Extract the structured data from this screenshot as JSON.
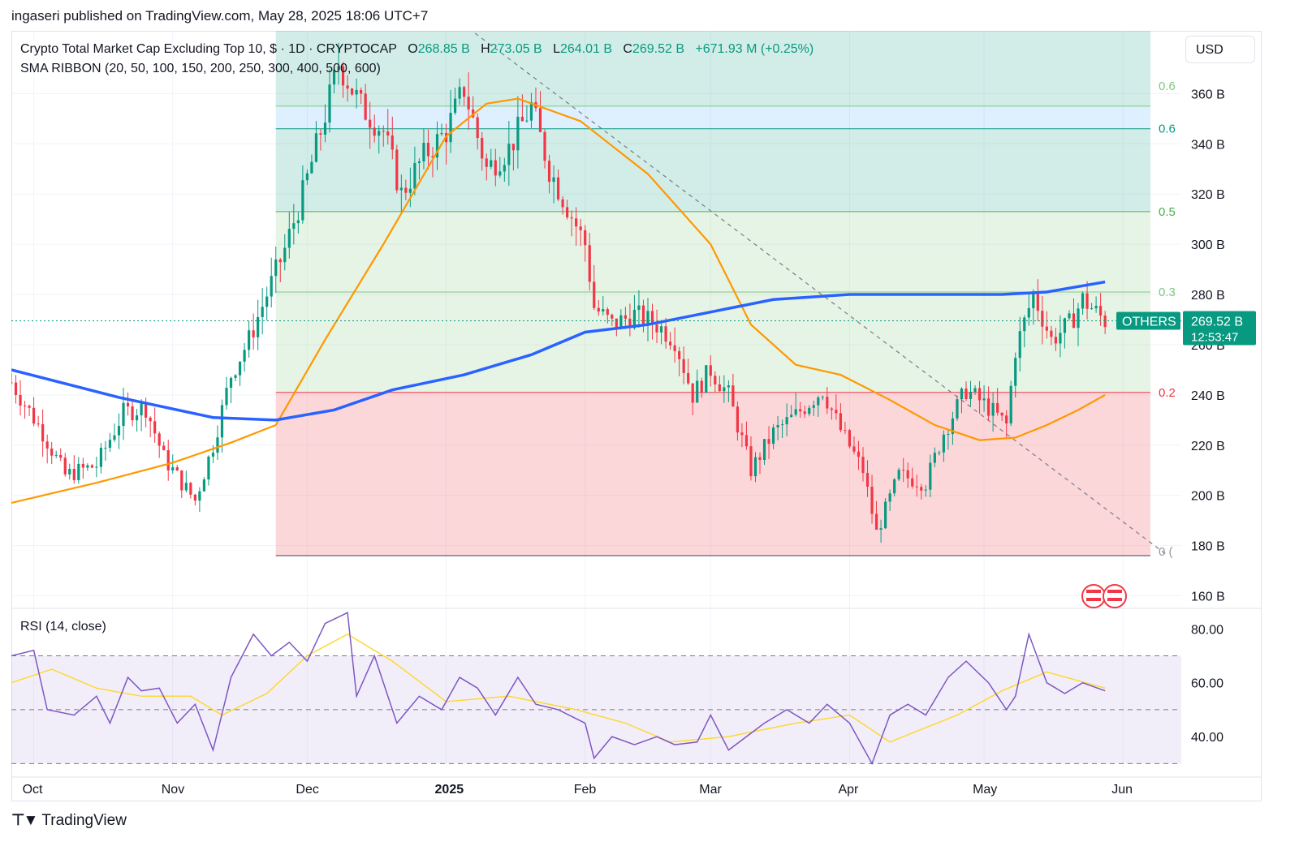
{
  "header": {
    "published": "ingaseri published on TradingView.com, May 28, 2025 18:06 UTC+7"
  },
  "legend": {
    "title": "Crypto Total Market Cap Excluding Top 10, $ · 1D · CRYPTOCAP",
    "o_label": "O",
    "o_value": "268.85 B",
    "h_label": "H",
    "h_value": "273.05 B",
    "l_label": "L",
    "l_value": "264.01 B",
    "c_label": "C",
    "c_value": "269.52 B",
    "change": "+671.93 M (+0.25%)",
    "indicator": "SMA RIBBON (20, 50, 100, 150, 200, 250, 300, 400, 500, 600)"
  },
  "currency_button": "USD",
  "rsi_title": "RSI (14, close)",
  "price_tag": {
    "symbol": "OTHERS",
    "price": "269.52 B",
    "countdown": "12:53:47"
  },
  "brand": "TradingView",
  "colors": {
    "up": "#089981",
    "down": "#f23645",
    "sma_fast": "#ff9800",
    "sma_slow": "#2962ff",
    "rsi": "#7e57c2",
    "rsi_ma": "#fdd835"
  },
  "chart_data": {
    "type": "candlestick",
    "title": "Crypto Total Market Cap Excluding Top 10, $ · 1D · CRYPTOCAP",
    "y_unit": "B USD",
    "y_range": [
      155,
      385
    ],
    "y_ticks": [
      "360 B",
      "340 B",
      "320 B",
      "300 B",
      "280 B",
      "260 B",
      "240 B",
      "220 B",
      "200 B",
      "180 B",
      "160 B"
    ],
    "x_labels": [
      "Oct",
      "Nov",
      "Dec",
      "2025",
      "Feb",
      "Mar",
      "Apr",
      "May",
      "Jun"
    ],
    "x_range": [
      "2024-09-26",
      "2025-06-14"
    ],
    "last_price": 269.52,
    "price_path_points": [
      [
        "2024-09-26",
        245
      ],
      [
        "2024-10-03",
        225
      ],
      [
        "2024-10-08",
        208
      ],
      [
        "2024-10-15",
        212
      ],
      [
        "2024-10-21",
        233
      ],
      [
        "2024-10-26",
        235
      ],
      [
        "2024-10-30",
        215
      ],
      [
        "2024-11-03",
        205
      ],
      [
        "2024-11-06",
        198
      ],
      [
        "2024-11-10",
        220
      ],
      [
        "2024-11-14",
        248
      ],
      [
        "2024-11-18",
        262
      ],
      [
        "2024-11-22",
        280
      ],
      [
        "2024-11-26",
        298
      ],
      [
        "2024-11-30",
        320
      ],
      [
        "2024-12-04",
        345
      ],
      [
        "2024-12-08",
        372
      ],
      [
        "2024-12-13",
        355
      ],
      [
        "2024-12-18",
        345
      ],
      [
        "2024-12-22",
        320
      ],
      [
        "2024-12-27",
        335
      ],
      [
        "2025-01-01",
        345
      ],
      [
        "2025-01-05",
        362
      ],
      [
        "2025-01-10",
        330
      ],
      [
        "2025-01-15",
        338
      ],
      [
        "2025-01-20",
        355
      ],
      [
        "2025-01-24",
        330
      ],
      [
        "2025-01-28",
        315
      ],
      [
        "2025-02-01",
        300
      ],
      [
        "2025-02-03",
        275
      ],
      [
        "2025-02-07",
        268
      ],
      [
        "2025-02-12",
        272
      ],
      [
        "2025-02-17",
        268
      ],
      [
        "2025-02-21",
        262
      ],
      [
        "2025-02-25",
        240
      ],
      [
        "2025-03-01",
        250
      ],
      [
        "2025-03-05",
        240
      ],
      [
        "2025-03-10",
        210
      ],
      [
        "2025-03-15",
        225
      ],
      [
        "2025-03-20",
        232
      ],
      [
        "2025-03-26",
        242
      ],
      [
        "2025-03-30",
        226
      ],
      [
        "2025-04-04",
        210
      ],
      [
        "2025-04-07",
        185
      ],
      [
        "2025-04-12",
        208
      ],
      [
        "2025-04-18",
        205
      ],
      [
        "2025-04-22",
        225
      ],
      [
        "2025-04-27",
        242
      ],
      [
        "2025-05-02",
        235
      ],
      [
        "2025-05-06",
        228
      ],
      [
        "2025-05-08",
        258
      ],
      [
        "2025-05-12",
        280
      ],
      [
        "2025-05-16",
        262
      ],
      [
        "2025-05-20",
        268
      ],
      [
        "2025-05-23",
        278
      ],
      [
        "2025-05-28",
        269.52
      ]
    ],
    "sma_fast_points": [
      [
        "2024-09-26",
        197
      ],
      [
        "2024-10-15",
        205
      ],
      [
        "2024-11-01",
        213
      ],
      [
        "2024-11-14",
        221
      ],
      [
        "2024-11-24",
        228
      ],
      [
        "2024-12-05",
        262
      ],
      [
        "2024-12-18",
        300
      ],
      [
        "2025-01-01",
        343
      ],
      [
        "2025-01-10",
        356
      ],
      [
        "2025-01-17",
        358
      ],
      [
        "2025-01-31",
        349
      ],
      [
        "2025-02-15",
        328
      ],
      [
        "2025-03-01",
        300
      ],
      [
        "2025-03-10",
        268
      ],
      [
        "2025-03-20",
        252
      ],
      [
        "2025-03-30",
        248
      ],
      [
        "2025-04-10",
        238
      ],
      [
        "2025-04-20",
        228
      ],
      [
        "2025-04-30",
        222
      ],
      [
        "2025-05-08",
        223
      ],
      [
        "2025-05-15",
        228
      ],
      [
        "2025-05-22",
        234
      ],
      [
        "2025-05-28",
        240
      ]
    ],
    "sma_slow_points": [
      [
        "2024-09-26",
        250
      ],
      [
        "2024-10-20",
        239
      ],
      [
        "2024-11-10",
        231
      ],
      [
        "2024-11-24",
        230
      ],
      [
        "2024-12-07",
        234
      ],
      [
        "2024-12-20",
        242
      ],
      [
        "2025-01-05",
        248
      ],
      [
        "2025-01-20",
        256
      ],
      [
        "2025-02-01",
        265
      ],
      [
        "2025-02-15",
        268
      ],
      [
        "2025-03-01",
        273
      ],
      [
        "2025-03-15",
        278
      ],
      [
        "2025-04-01",
        280
      ],
      [
        "2025-04-20",
        280
      ],
      [
        "2025-05-05",
        280
      ],
      [
        "2025-05-15",
        281
      ],
      [
        "2025-05-28",
        285
      ]
    ],
    "fib_levels": [
      {
        "label": "0.6",
        "value": 355
      },
      {
        "label": "0.6",
        "value": 346
      },
      {
        "label": "0.5",
        "value": 313
      },
      {
        "label": "0.3",
        "value": 281
      },
      {
        "label": "0.2",
        "value": 241
      },
      {
        "label": "0 (",
        "value": 176
      }
    ],
    "trendline": [
      [
        "2025-01-06",
        386
      ],
      [
        "2025-06-11",
        176
      ]
    ],
    "rsi": {
      "title": "RSI (14, close)",
      "y_range": [
        28,
        87
      ],
      "y_ticks": [
        "80.00",
        "60.00",
        "40.00"
      ],
      "band": [
        30,
        70
      ],
      "rsi_points": [
        [
          "2024-09-26",
          70
        ],
        [
          "2024-10-01",
          72
        ],
        [
          "2024-10-04",
          50
        ],
        [
          "2024-10-10",
          48
        ],
        [
          "2024-10-15",
          55
        ],
        [
          "2024-10-18",
          45
        ],
        [
          "2024-10-22",
          62
        ],
        [
          "2024-10-25",
          57
        ],
        [
          "2024-10-29",
          58
        ],
        [
          "2024-11-02",
          45
        ],
        [
          "2024-11-06",
          52
        ],
        [
          "2024-11-10",
          35
        ],
        [
          "2024-11-14",
          62
        ],
        [
          "2024-11-19",
          78
        ],
        [
          "2024-11-23",
          70
        ],
        [
          "2024-11-27",
          75
        ],
        [
          "2024-12-01",
          68
        ],
        [
          "2024-12-05",
          82
        ],
        [
          "2024-12-10",
          86
        ],
        [
          "2024-12-12",
          55
        ],
        [
          "2024-12-16",
          70
        ],
        [
          "2024-12-21",
          45
        ],
        [
          "2024-12-26",
          55
        ],
        [
          "2024-12-31",
          50
        ],
        [
          "2025-01-04",
          62
        ],
        [
          "2025-01-08",
          58
        ],
        [
          "2025-01-12",
          48
        ],
        [
          "2025-01-17",
          62
        ],
        [
          "2025-01-21",
          52
        ],
        [
          "2025-01-26",
          50
        ],
        [
          "2025-02-01",
          45
        ],
        [
          "2025-02-03",
          32
        ],
        [
          "2025-02-07",
          40
        ],
        [
          "2025-02-12",
          37
        ],
        [
          "2025-02-17",
          40
        ],
        [
          "2025-02-21",
          37
        ],
        [
          "2025-02-26",
          38
        ],
        [
          "2025-03-01",
          48
        ],
        [
          "2025-03-05",
          35
        ],
        [
          "2025-03-09",
          40
        ],
        [
          "2025-03-13",
          45
        ],
        [
          "2025-03-18",
          50
        ],
        [
          "2025-03-23",
          45
        ],
        [
          "2025-03-27",
          52
        ],
        [
          "2025-04-01",
          45
        ],
        [
          "2025-04-06",
          30
        ],
        [
          "2025-04-10",
          48
        ],
        [
          "2025-04-14",
          52
        ],
        [
          "2025-04-18",
          48
        ],
        [
          "2025-04-23",
          62
        ],
        [
          "2025-04-27",
          68
        ],
        [
          "2025-05-02",
          60
        ],
        [
          "2025-05-06",
          50
        ],
        [
          "2025-05-08",
          55
        ],
        [
          "2025-05-11",
          78
        ],
        [
          "2025-05-15",
          60
        ],
        [
          "2025-05-19",
          56
        ],
        [
          "2025-05-23",
          60
        ],
        [
          "2025-05-28",
          57
        ]
      ],
      "rsi_ma_points": [
        [
          "2024-09-26",
          60
        ],
        [
          "2024-10-05",
          65
        ],
        [
          "2024-10-15",
          58
        ],
        [
          "2024-10-25",
          55
        ],
        [
          "2024-11-05",
          55
        ],
        [
          "2024-11-12",
          48
        ],
        [
          "2024-11-22",
          56
        ],
        [
          "2024-12-01",
          70
        ],
        [
          "2024-12-10",
          78
        ],
        [
          "2024-12-20",
          68
        ],
        [
          "2025-01-01",
          53
        ],
        [
          "2025-01-15",
          55
        ],
        [
          "2025-01-30",
          50
        ],
        [
          "2025-02-10",
          45
        ],
        [
          "2025-02-20",
          38
        ],
        [
          "2025-03-05",
          40
        ],
        [
          "2025-03-20",
          45
        ],
        [
          "2025-04-01",
          48
        ],
        [
          "2025-04-10",
          38
        ],
        [
          "2025-04-25",
          48
        ],
        [
          "2025-05-05",
          57
        ],
        [
          "2025-05-15",
          64
        ],
        [
          "2025-05-28",
          58
        ]
      ]
    }
  }
}
